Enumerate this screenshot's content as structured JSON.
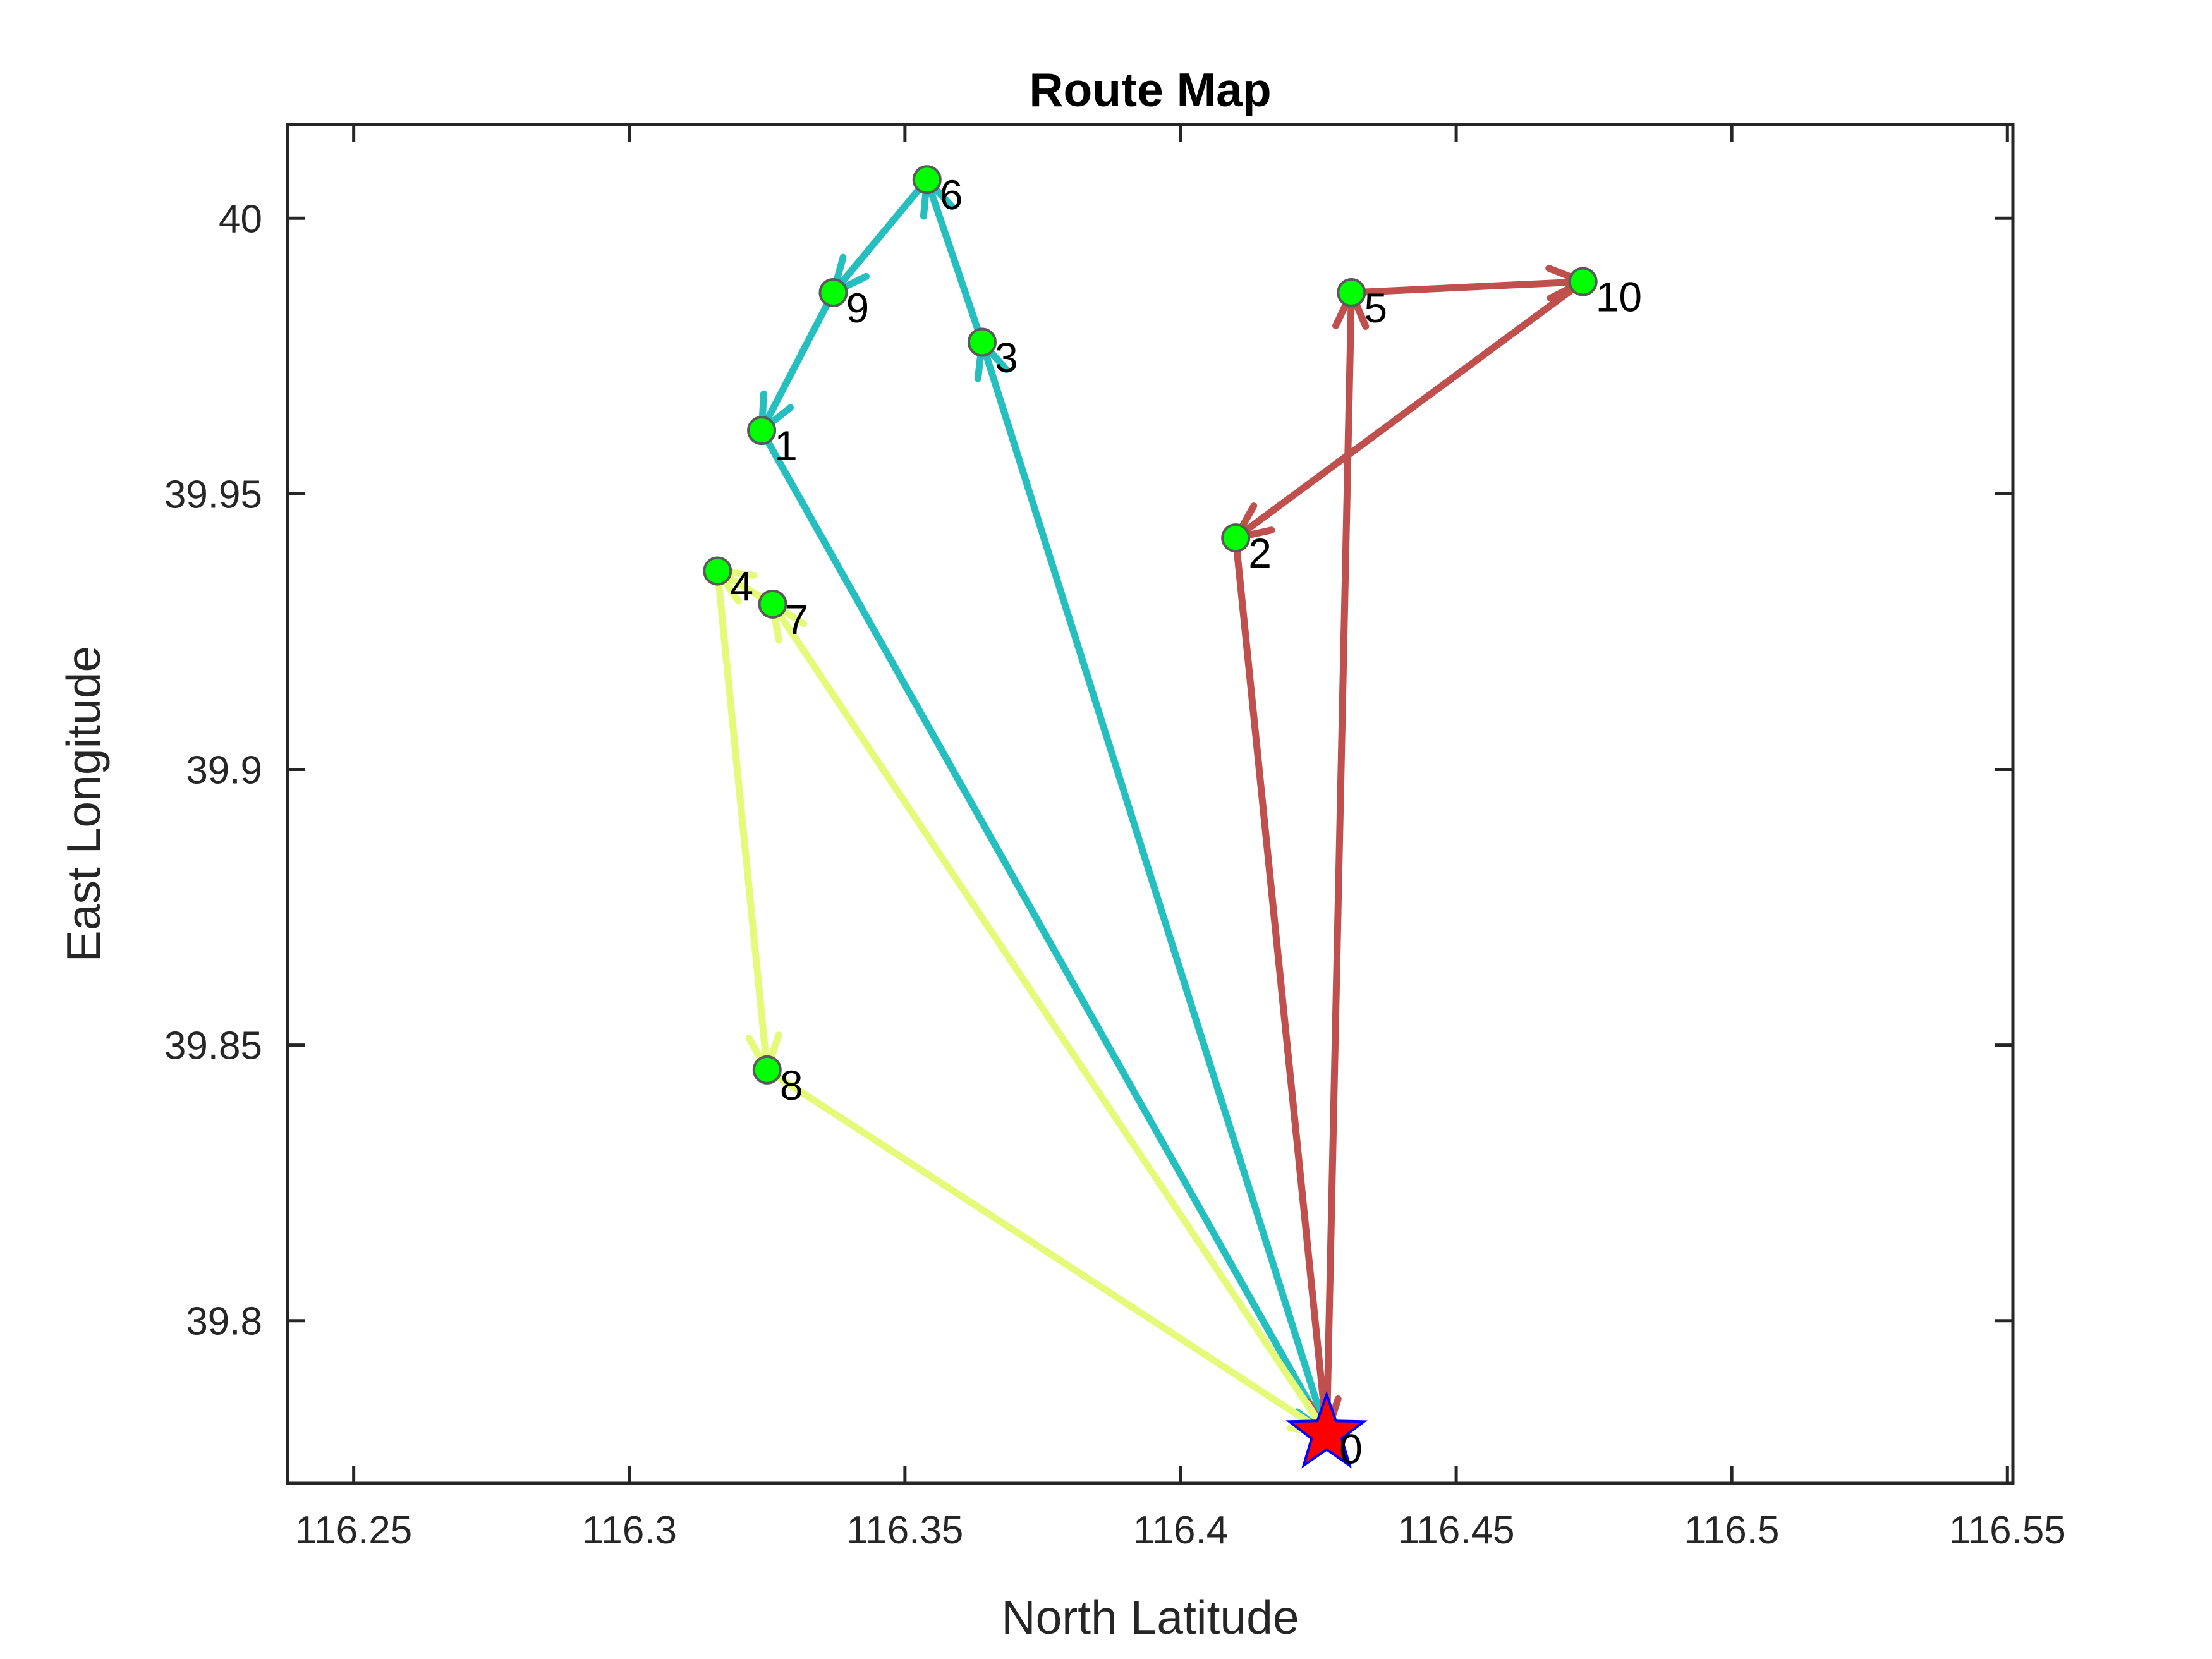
{
  "chart_data": {
    "type": "scatter",
    "title": "Route Map",
    "xlabel": "North Latitude",
    "ylabel": "East Longitude",
    "xlim": [
      116.238,
      116.551
    ],
    "ylim": [
      39.7705,
      40.017
    ],
    "xticks": [
      116.25,
      116.3,
      116.35,
      116.4,
      116.45,
      116.5,
      116.55
    ],
    "xtick_labels": [
      "116.25",
      "116.3",
      "116.35",
      "116.4",
      "116.45",
      "116.5",
      "116.55"
    ],
    "yticks": [
      39.8,
      39.85,
      39.9,
      39.95,
      40
    ],
    "ytick_labels": [
      "39.8",
      "39.85",
      "39.9",
      "39.95",
      "40"
    ],
    "grid": false,
    "depot": {
      "label": "0",
      "x": 116.4265,
      "y": 39.7795
    },
    "nodes": [
      {
        "label": "1",
        "x": 116.324,
        "y": 39.9615
      },
      {
        "label": "2",
        "x": 116.41,
        "y": 39.942
      },
      {
        "label": "3",
        "x": 116.364,
        "y": 39.9775
      },
      {
        "label": "4",
        "x": 116.316,
        "y": 39.936
      },
      {
        "label": "5",
        "x": 116.431,
        "y": 39.9865
      },
      {
        "label": "6",
        "x": 116.354,
        "y": 40.007
      },
      {
        "label": "7",
        "x": 116.326,
        "y": 39.93
      },
      {
        "label": "8",
        "x": 116.325,
        "y": 39.8455
      },
      {
        "label": "9",
        "x": 116.337,
        "y": 39.9865
      },
      {
        "label": "10",
        "x": 116.473,
        "y": 39.9885
      }
    ],
    "routes": [
      {
        "color": "#26BFBF",
        "stops": [
          "0",
          "3",
          "6",
          "9",
          "1",
          "0"
        ]
      },
      {
        "color": "#C0504D",
        "stops": [
          "0",
          "5",
          "10",
          "2",
          "0"
        ]
      },
      {
        "color": "#E5FA78",
        "stops": [
          "0",
          "7",
          "4",
          "8",
          "0"
        ]
      }
    ],
    "node_color": "#00FF00",
    "depot_color": "#FF0000"
  }
}
